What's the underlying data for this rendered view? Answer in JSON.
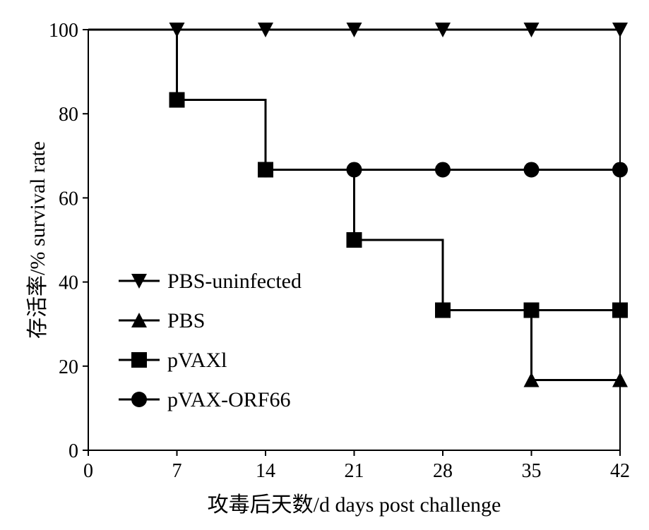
{
  "chart_data": {
    "type": "line",
    "step": true,
    "title": "",
    "xlabel": "攻毒后天数/d days post challenge",
    "ylabel": "存活率/% survival rate",
    "xlim": [
      0,
      42
    ],
    "ylim": [
      0,
      100
    ],
    "xticks": [
      0,
      7,
      14,
      21,
      28,
      35,
      42
    ],
    "yticks": [
      0,
      20,
      40,
      60,
      80,
      100
    ],
    "grid": false,
    "legend_position": "bottom-left",
    "series": [
      {
        "name": "PBS-uninfected",
        "marker": "triangle-down",
        "color": "#000000",
        "x": [
          0,
          7,
          14,
          21,
          28,
          35,
          42
        ],
        "y": [
          100,
          100,
          100,
          100,
          100,
          100,
          100
        ]
      },
      {
        "name": "PBS",
        "marker": "triangle-up",
        "color": "#000000",
        "x": [
          0,
          7,
          14,
          21,
          28,
          35,
          42
        ],
        "y": [
          100,
          83.3,
          66.7,
          50,
          33.3,
          16.7,
          16.7
        ]
      },
      {
        "name": "pVAXl",
        "marker": "square",
        "color": "#000000",
        "x": [
          0,
          7,
          14,
          21,
          28,
          35,
          42
        ],
        "y": [
          100,
          83.3,
          66.7,
          50,
          33.3,
          33.3,
          33.3
        ]
      },
      {
        "name": "pVAX-ORF66",
        "marker": "circle",
        "color": "#000000",
        "x": [
          0,
          7,
          14,
          21,
          28,
          35,
          42
        ],
        "y": [
          100,
          83.3,
          66.7,
          66.7,
          66.7,
          66.7,
          66.7
        ]
      }
    ]
  }
}
